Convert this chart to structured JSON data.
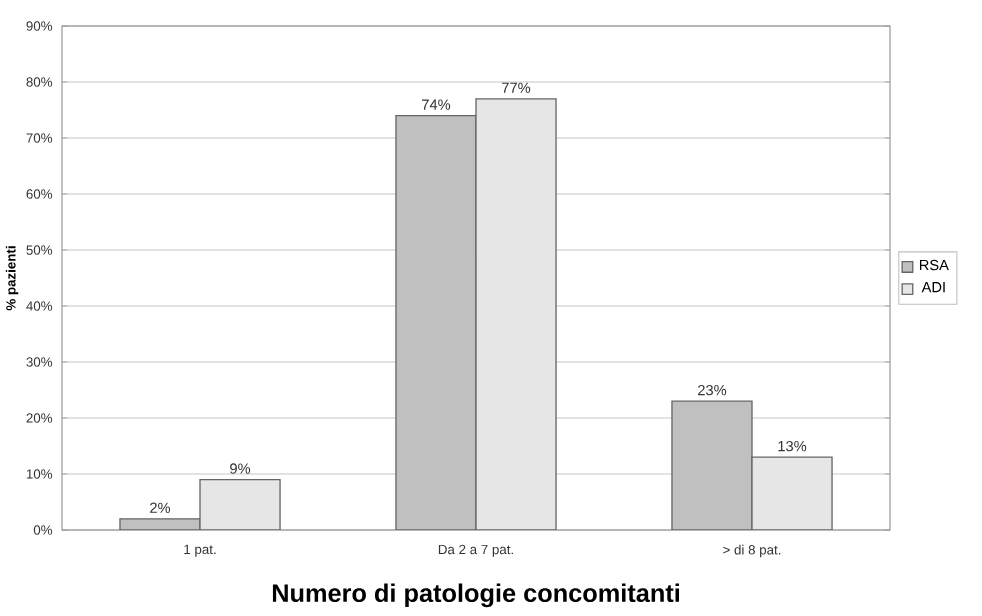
{
  "chart_data": {
    "type": "bar",
    "xlabel": "Numero di patologie concomitanti",
    "ylabel": "% pazienti",
    "categories": [
      "1 pat.",
      "Da 2 a 7 pat.",
      "> di 8 pat."
    ],
    "series": [
      {
        "name": "RSA",
        "color": "#c0c0c0",
        "values": [
          2,
          74,
          23
        ],
        "value_labels": [
          "2%",
          "74%",
          "23%"
        ]
      },
      {
        "name": "ADI",
        "color": "#e6e6e6",
        "values": [
          9,
          77,
          13
        ],
        "value_labels": [
          "9%",
          "77%",
          "13%"
        ]
      }
    ],
    "ylim": [
      0,
      90
    ],
    "yticks": [
      {
        "value": 0,
        "label": "0%"
      },
      {
        "value": 10,
        "label": "10%"
      },
      {
        "value": 20,
        "label": "20%"
      },
      {
        "value": 30,
        "label": "30%"
      },
      {
        "value": 40,
        "label": "40%"
      },
      {
        "value": 50,
        "label": "50%"
      },
      {
        "value": 60,
        "label": "60%"
      },
      {
        "value": 70,
        "label": "70%"
      },
      {
        "value": 80,
        "label": "80%"
      },
      {
        "value": 90,
        "label": "90%"
      }
    ],
    "grid": "y",
    "legend": "right"
  }
}
